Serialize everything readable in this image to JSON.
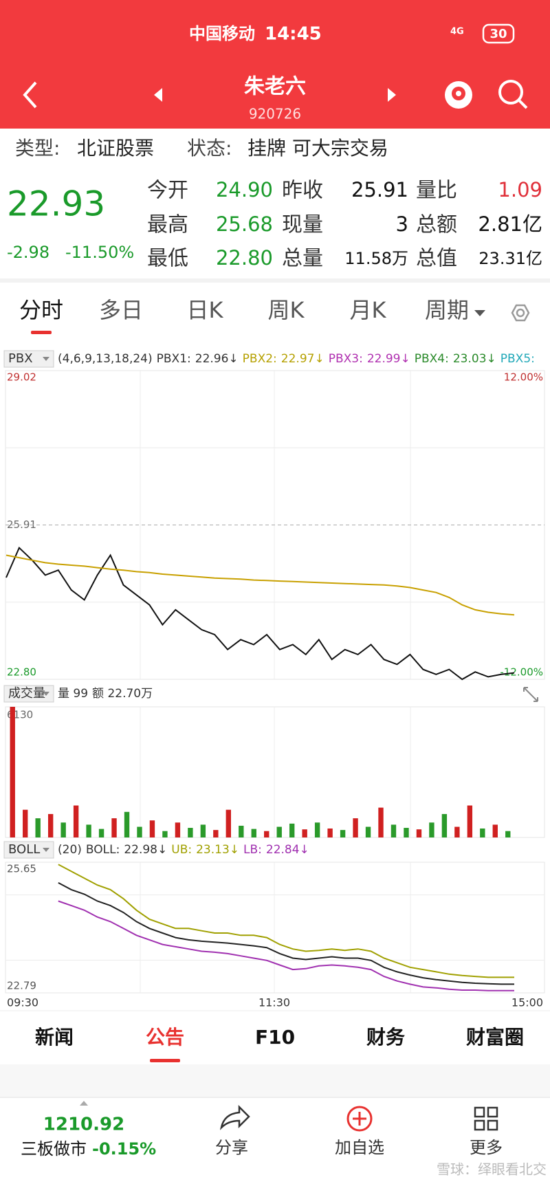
{
  "status_bar": {
    "carrier": "中国移动",
    "time": "14:45",
    "network": "4G",
    "battery": "30"
  },
  "header": {
    "title": "朱老六",
    "code": "920726"
  },
  "info": {
    "type_label": "类型:",
    "type": "北证股票",
    "status_label": "状态:",
    "status": "挂牌 可大宗交易"
  },
  "quote": {
    "price": "22.93",
    "change": "-2.98",
    "change_pct": "-11.50%",
    "color": "#1a9a2a",
    "fields": [
      {
        "label": "今开",
        "value": "24.90",
        "color": "#1a9a2a"
      },
      {
        "label": "昨收",
        "value": "25.91",
        "color": "#111111"
      },
      {
        "label": "量比",
        "value": "1.09",
        "color": "#e0303a"
      },
      {
        "label": "最高",
        "value": "25.68",
        "color": "#1a9a2a"
      },
      {
        "label": "现量",
        "value": "3",
        "color": "#111111"
      },
      {
        "label": "总额",
        "value": "2.81亿",
        "color": "#111111"
      },
      {
        "label": "最低",
        "value": "22.80",
        "color": "#1a9a2a"
      },
      {
        "label": "总量",
        "value": "11.58万",
        "color": "#111111"
      },
      {
        "label": "总值",
        "value": "23.31亿",
        "color": "#111111"
      }
    ]
  },
  "tabs": {
    "items": [
      "分时",
      "多日",
      "日K",
      "周K",
      "月K",
      "周期"
    ],
    "active": 0
  },
  "chart_data": [
    {
      "type": "line",
      "indicator": "PBX",
      "params": "(4,6,9,13,18,24)",
      "legend": [
        {
          "name": "PBX1:",
          "value": "22.96↓",
          "color": "#333333"
        },
        {
          "name": "PBX2:",
          "value": "22.97↓",
          "color": "#b5a000"
        },
        {
          "name": "PBX3:",
          "value": "22.99↓",
          "color": "#b030b0"
        },
        {
          "name": "PBX4:",
          "value": "23.03↓",
          "color": "#2a8a2a"
        },
        {
          "name": "PBX5:",
          "value": "",
          "color": "#20a8b8"
        }
      ],
      "ylim": [
        22.8,
        29.02
      ],
      "yticks": [
        29.02,
        25.91,
        {
          "value": 22.8,
          "label": "22.80"
        }
      ],
      "y2lim": [
        -12,
        12
      ],
      "y2ticks": [
        {
          "value": 12,
          "label": "12.00%"
        },
        {
          "value": -12,
          "label": "-12.00%"
        }
      ],
      "series": [
        {
          "name": "price",
          "color": "#111111",
          "values": [
            24.85,
            25.45,
            25.2,
            24.9,
            25.0,
            24.6,
            24.4,
            24.9,
            25.3,
            24.7,
            24.5,
            24.3,
            23.9,
            24.2,
            24.0,
            23.8,
            23.7,
            23.4,
            23.6,
            23.5,
            23.7,
            23.4,
            23.5,
            23.3,
            23.6,
            23.2,
            23.4,
            23.3,
            23.5,
            23.2,
            23.1,
            23.3,
            23.0,
            22.9,
            23.0,
            22.8,
            22.95,
            22.85,
            22.9,
            22.93
          ]
        },
        {
          "name": "average",
          "color": "#c8a000",
          "values": [
            25.3,
            25.25,
            25.2,
            25.15,
            25.12,
            25.1,
            25.08,
            25.05,
            25.02,
            25.0,
            24.97,
            24.95,
            24.92,
            24.9,
            24.88,
            24.86,
            24.84,
            24.83,
            24.82,
            24.8,
            24.79,
            24.78,
            24.77,
            24.76,
            24.75,
            24.74,
            24.73,
            24.72,
            24.71,
            24.7,
            24.68,
            24.65,
            24.6,
            24.55,
            24.45,
            24.3,
            24.2,
            24.15,
            24.12,
            24.1
          ]
        }
      ]
    },
    {
      "type": "bar",
      "indicator": "成交量",
      "volume_label": "量 99",
      "amount_label": "额 22.70万",
      "ylim": [
        0,
        6130
      ],
      "yticks": [
        6130
      ],
      "values": [
        6130,
        1300,
        900,
        1100,
        700,
        1500,
        600,
        400,
        900,
        1200,
        500,
        800,
        300,
        700,
        450,
        600,
        350,
        1300,
        550,
        400,
        300,
        500,
        650,
        380,
        700,
        420,
        350,
        900,
        500,
        1400,
        600,
        450,
        380,
        700,
        1100,
        500,
        1500,
        420,
        600,
        300
      ],
      "colors": [
        "#d02020",
        "#d02020",
        "#2a9a2a",
        "#d02020",
        "#2a9a2a",
        "#d02020",
        "#2a9a2a",
        "#2a9a2a",
        "#d02020",
        "#2a9a2a",
        "#2a9a2a",
        "#d02020",
        "#2a9a2a",
        "#d02020",
        "#2a9a2a",
        "#2a9a2a",
        "#d02020",
        "#d02020",
        "#2a9a2a",
        "#2a9a2a",
        "#d02020",
        "#2a9a2a",
        "#2a9a2a",
        "#d02020",
        "#2a9a2a",
        "#d02020",
        "#2a9a2a",
        "#d02020",
        "#2a9a2a",
        "#d02020",
        "#2a9a2a",
        "#2a9a2a",
        "#d02020",
        "#2a9a2a",
        "#2a9a2a",
        "#d02020",
        "#d02020",
        "#2a9a2a",
        "#d02020",
        "#2a9a2a"
      ]
    },
    {
      "type": "line",
      "indicator": "BOLL",
      "params": "(20)",
      "legend": [
        {
          "name": "BOLL:",
          "value": "22.98↓",
          "color": "#333333"
        },
        {
          "name": "UB:",
          "value": "23.13↓",
          "color": "#a0a000"
        },
        {
          "name": "LB:",
          "value": "22.84↓",
          "color": "#a030b0"
        }
      ],
      "ylim": [
        22.79,
        25.65
      ],
      "yticks": [
        25.65,
        22.79
      ],
      "series": [
        {
          "name": "UB",
          "color": "#a0a000",
          "values": [
            null,
            null,
            null,
            null,
            25.6,
            25.45,
            25.3,
            25.15,
            25.05,
            24.85,
            24.6,
            24.4,
            24.3,
            24.2,
            24.2,
            24.15,
            24.1,
            24.1,
            24.05,
            24.05,
            24.0,
            23.85,
            23.75,
            23.7,
            23.72,
            23.75,
            23.72,
            23.75,
            23.7,
            23.55,
            23.45,
            23.35,
            23.3,
            23.25,
            23.2,
            23.17,
            23.15,
            23.13,
            23.13,
            23.13
          ]
        },
        {
          "name": "BOLL",
          "color": "#222222",
          "values": [
            null,
            null,
            null,
            null,
            25.2,
            25.05,
            24.95,
            24.8,
            24.7,
            24.55,
            24.35,
            24.2,
            24.1,
            24.0,
            23.95,
            23.92,
            23.9,
            23.88,
            23.85,
            23.82,
            23.78,
            23.65,
            23.55,
            23.52,
            23.55,
            23.58,
            23.55,
            23.55,
            23.5,
            23.35,
            23.25,
            23.18,
            23.12,
            23.08,
            23.05,
            23.02,
            23.0,
            22.99,
            22.98,
            22.98
          ]
        },
        {
          "name": "LB",
          "color": "#a030b0",
          "values": [
            null,
            null,
            null,
            null,
            24.8,
            24.7,
            24.6,
            24.45,
            24.35,
            24.2,
            24.05,
            23.95,
            23.85,
            23.8,
            23.75,
            23.7,
            23.68,
            23.65,
            23.6,
            23.55,
            23.5,
            23.4,
            23.3,
            23.32,
            23.38,
            23.4,
            23.38,
            23.35,
            23.3,
            23.15,
            23.05,
            22.98,
            22.92,
            22.9,
            22.87,
            22.85,
            22.85,
            22.84,
            22.84,
            22.84
          ]
        }
      ]
    }
  ],
  "time_axis": [
    "09:30",
    "11:30",
    "15:00"
  ],
  "bottom_tabs": {
    "items": [
      "新闻",
      "公告",
      "F10",
      "财务",
      "财富圈"
    ],
    "active": 1
  },
  "nav": {
    "index_value": "1210.92",
    "index_name": "三板做市",
    "index_change": "-0.15%",
    "buttons": [
      "分享",
      "加自选",
      "更多"
    ]
  },
  "watermark": "雪球：绎眼看北交"
}
